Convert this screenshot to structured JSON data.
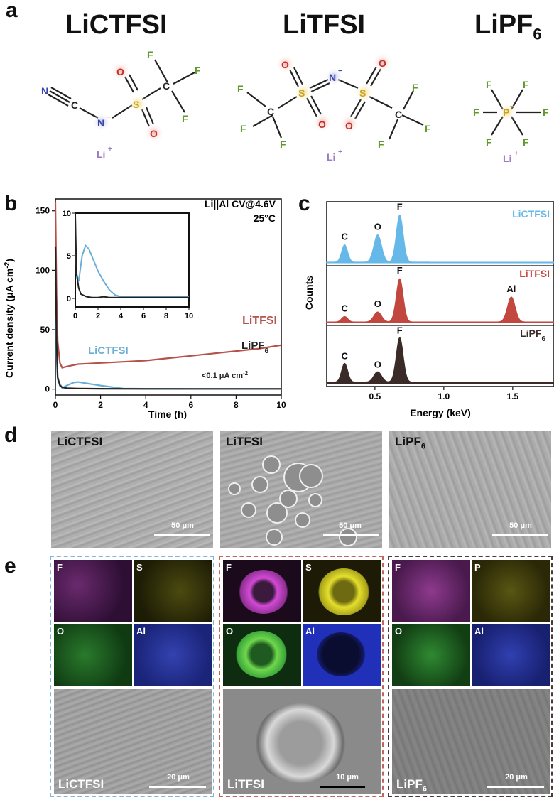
{
  "panel_a": {
    "letter": "a",
    "salts": [
      {
        "title": "LiCTFSI",
        "title_sub": ""
      },
      {
        "title": "LiTFSI",
        "title_sub": ""
      },
      {
        "title": "LiPF",
        "title_sub": "6"
      }
    ],
    "atoms": {
      "N": "N",
      "C": "C",
      "S": "S",
      "O": "O",
      "F": "F",
      "P": "P",
      "Li": "Li",
      "plus": "+",
      "minus": "−"
    }
  },
  "panel_b": {
    "letter": "b",
    "annotation_line1": "Li||Al CV@4.6V",
    "annotation_line2": "25°C",
    "series_label_litfsi": "LiTFSI",
    "series_label_lictfsi": "LiCTFSI",
    "series_label_lipf6": "LiPF",
    "series_label_lipf6_sub": "6",
    "note": "<0.1 μA cm",
    "note_sup": "-2",
    "colors": {
      "LiTFSI": "#b5524a",
      "LiCTFSI": "#6aaed6",
      "LiPF6": "#222222"
    }
  },
  "panel_c": {
    "letter": "c",
    "ylabel": "Counts",
    "xlabel": "Energy (keV)",
    "traces": [
      {
        "name": "LiCTFSI",
        "color": "#66b8e8"
      },
      {
        "name": "LiTFSI",
        "color": "#c2473e"
      },
      {
        "name": "LiPF",
        "name_sub": "6",
        "color": "#3a2a28"
      }
    ],
    "peak_labels": {
      "C": "C",
      "O": "O",
      "F": "F",
      "Al": "Al"
    }
  },
  "panel_d": {
    "letter": "d",
    "images": [
      {
        "label": "LiCTFSI",
        "label_sub": "",
        "scale": "50 μm"
      },
      {
        "label": "LiTFSI",
        "label_sub": "",
        "scale": "50 μm"
      },
      {
        "label": "LiPF",
        "label_sub": "6",
        "scale": "50 μm"
      }
    ]
  },
  "panel_e": {
    "letter": "e",
    "groups": [
      {
        "label": "LiCTFSI",
        "label_sub": "",
        "maps": [
          "F",
          "S",
          "O",
          "Al"
        ],
        "scale": "20 μm",
        "border": "#7fb8d8"
      },
      {
        "label": "LiTFSI",
        "label_sub": "",
        "maps": [
          "F",
          "S",
          "O",
          "Al"
        ],
        "scale": "10 μm",
        "border": "#c0665f"
      },
      {
        "label": "LiPF",
        "label_sub": "6",
        "maps": [
          "F",
          "P",
          "O",
          "Al"
        ],
        "scale": "20 μm",
        "border": "#4a3b39"
      }
    ]
  },
  "chart_data": [
    {
      "type": "line",
      "title": "",
      "xlabel": "Time (h)",
      "ylabel": "Current density (μA cm⁻²)",
      "xlim": [
        0,
        10
      ],
      "ylim": [
        -5,
        160
      ],
      "xticks": [
        0,
        2,
        4,
        6,
        8,
        10
      ],
      "yticks": [
        0,
        50,
        100,
        150
      ],
      "series": [
        {
          "name": "LiTFSI",
          "x": [
            0,
            0.05,
            0.1,
            0.2,
            0.3,
            0.5,
            1,
            2,
            3,
            4,
            5,
            6,
            7,
            8,
            9,
            10
          ],
          "values": [
            157,
            80,
            40,
            22,
            18,
            19,
            21,
            22,
            23,
            24,
            26,
            28,
            30,
            32,
            34,
            37
          ]
        },
        {
          "name": "LiCTFSI",
          "x": [
            0,
            0.05,
            0.1,
            0.3,
            0.5,
            0.8,
            1,
            1.5,
            2,
            3,
            4,
            6,
            8,
            10
          ],
          "values": [
            90,
            30,
            8,
            1,
            3,
            5.5,
            6,
            4.5,
            3,
            0.5,
            0.3,
            0.2,
            0.2,
            0.2
          ]
        },
        {
          "name": "LiPF6",
          "x": [
            0,
            0.05,
            0.1,
            0.2,
            0.3,
            0.5,
            1,
            2,
            4,
            6,
            8,
            10
          ],
          "values": [
            120,
            40,
            10,
            3,
            1.5,
            0.8,
            0.5,
            0.3,
            0.2,
            0.2,
            0.2,
            0.2
          ]
        }
      ],
      "inset": {
        "xlim": [
          0,
          10
        ],
        "ylim": [
          -1,
          10
        ],
        "xticks": [
          0,
          2,
          4,
          6,
          8,
          10
        ],
        "yticks": [
          0,
          5,
          10
        ],
        "series": [
          {
            "name": "LiCTFSI",
            "x": [
              0,
              0.1,
              0.3,
              0.6,
              0.9,
              1.2,
              1.6,
              2,
              2.5,
              3,
              3.5,
              4,
              5,
              6,
              8,
              10
            ],
            "values": [
              9.5,
              3,
              2,
              5,
              6.2,
              5.8,
              4.5,
              3.2,
              2,
              1,
              0.4,
              0.2,
              0.2,
              0.2,
              0.2,
              0.2
            ]
          },
          {
            "name": "LiPF6",
            "x": [
              0,
              0.1,
              0.3,
              0.5,
              1,
              1.5,
              2,
              2.5,
              3,
              4,
              6,
              8,
              10
            ],
            "values": [
              9.8,
              3,
              1.2,
              0.5,
              0.2,
              0.1,
              0.1,
              0.2,
              0.1,
              0.1,
              0.1,
              0.1,
              0.1
            ]
          }
        ]
      }
    },
    {
      "type": "area",
      "title": "",
      "xlabel": "Energy (keV)",
      "ylabel": "Counts",
      "xlim": [
        0.15,
        1.8
      ],
      "xticks": [
        0.5,
        1.0,
        1.5
      ],
      "series": [
        {
          "name": "LiCTFSI",
          "peaks": [
            {
              "element": "C",
              "energy": 0.28,
              "height": 0.35
            },
            {
              "element": "O",
              "energy": 0.52,
              "height": 0.55
            },
            {
              "element": "F",
              "energy": 0.68,
              "height": 0.95
            }
          ]
        },
        {
          "name": "LiTFSI",
          "peaks": [
            {
              "element": "C",
              "energy": 0.28,
              "height": 0.12
            },
            {
              "element": "O",
              "energy": 0.52,
              "height": 0.22
            },
            {
              "element": "F",
              "energy": 0.68,
              "height": 0.95
            },
            {
              "element": "Al",
              "energy": 1.49,
              "height": 0.55
            }
          ]
        },
        {
          "name": "LiPF6",
          "peaks": [
            {
              "element": "C",
              "energy": 0.28,
              "height": 0.4
            },
            {
              "element": "O",
              "energy": 0.52,
              "height": 0.22
            },
            {
              "element": "F",
              "energy": 0.68,
              "height": 0.95
            }
          ]
        }
      ]
    }
  ]
}
